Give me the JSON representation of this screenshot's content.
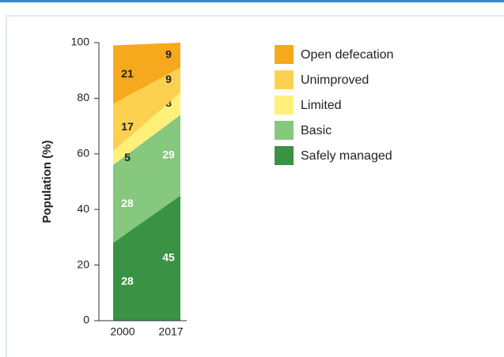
{
  "chart_data": {
    "type": "area",
    "y_label": "Population (%)",
    "categories": [
      "2000",
      "2017"
    ],
    "series": [
      {
        "name": "Open defecation",
        "color": "#f7a91d",
        "label_color": "#222222",
        "values": [
          21,
          9
        ]
      },
      {
        "name": "Unimproved",
        "color": "#fdd150",
        "label_color": "#222222",
        "values": [
          17,
          9
        ]
      },
      {
        "name": "Limited",
        "color": "#fff07a",
        "label_color": "#222222",
        "values": [
          5,
          8
        ]
      },
      {
        "name": "Basic",
        "color": "#85c87e",
        "label_color": "#ffffff",
        "values": [
          28,
          29
        ]
      },
      {
        "name": "Safely managed",
        "color": "#3a9245",
        "label_color": "#ffffff",
        "values": [
          28,
          45
        ]
      }
    ],
    "stacked": true,
    "ylim": [
      0,
      100
    ],
    "yticks": [
      0,
      20,
      40,
      60,
      80,
      100
    ],
    "legend": "right"
  }
}
